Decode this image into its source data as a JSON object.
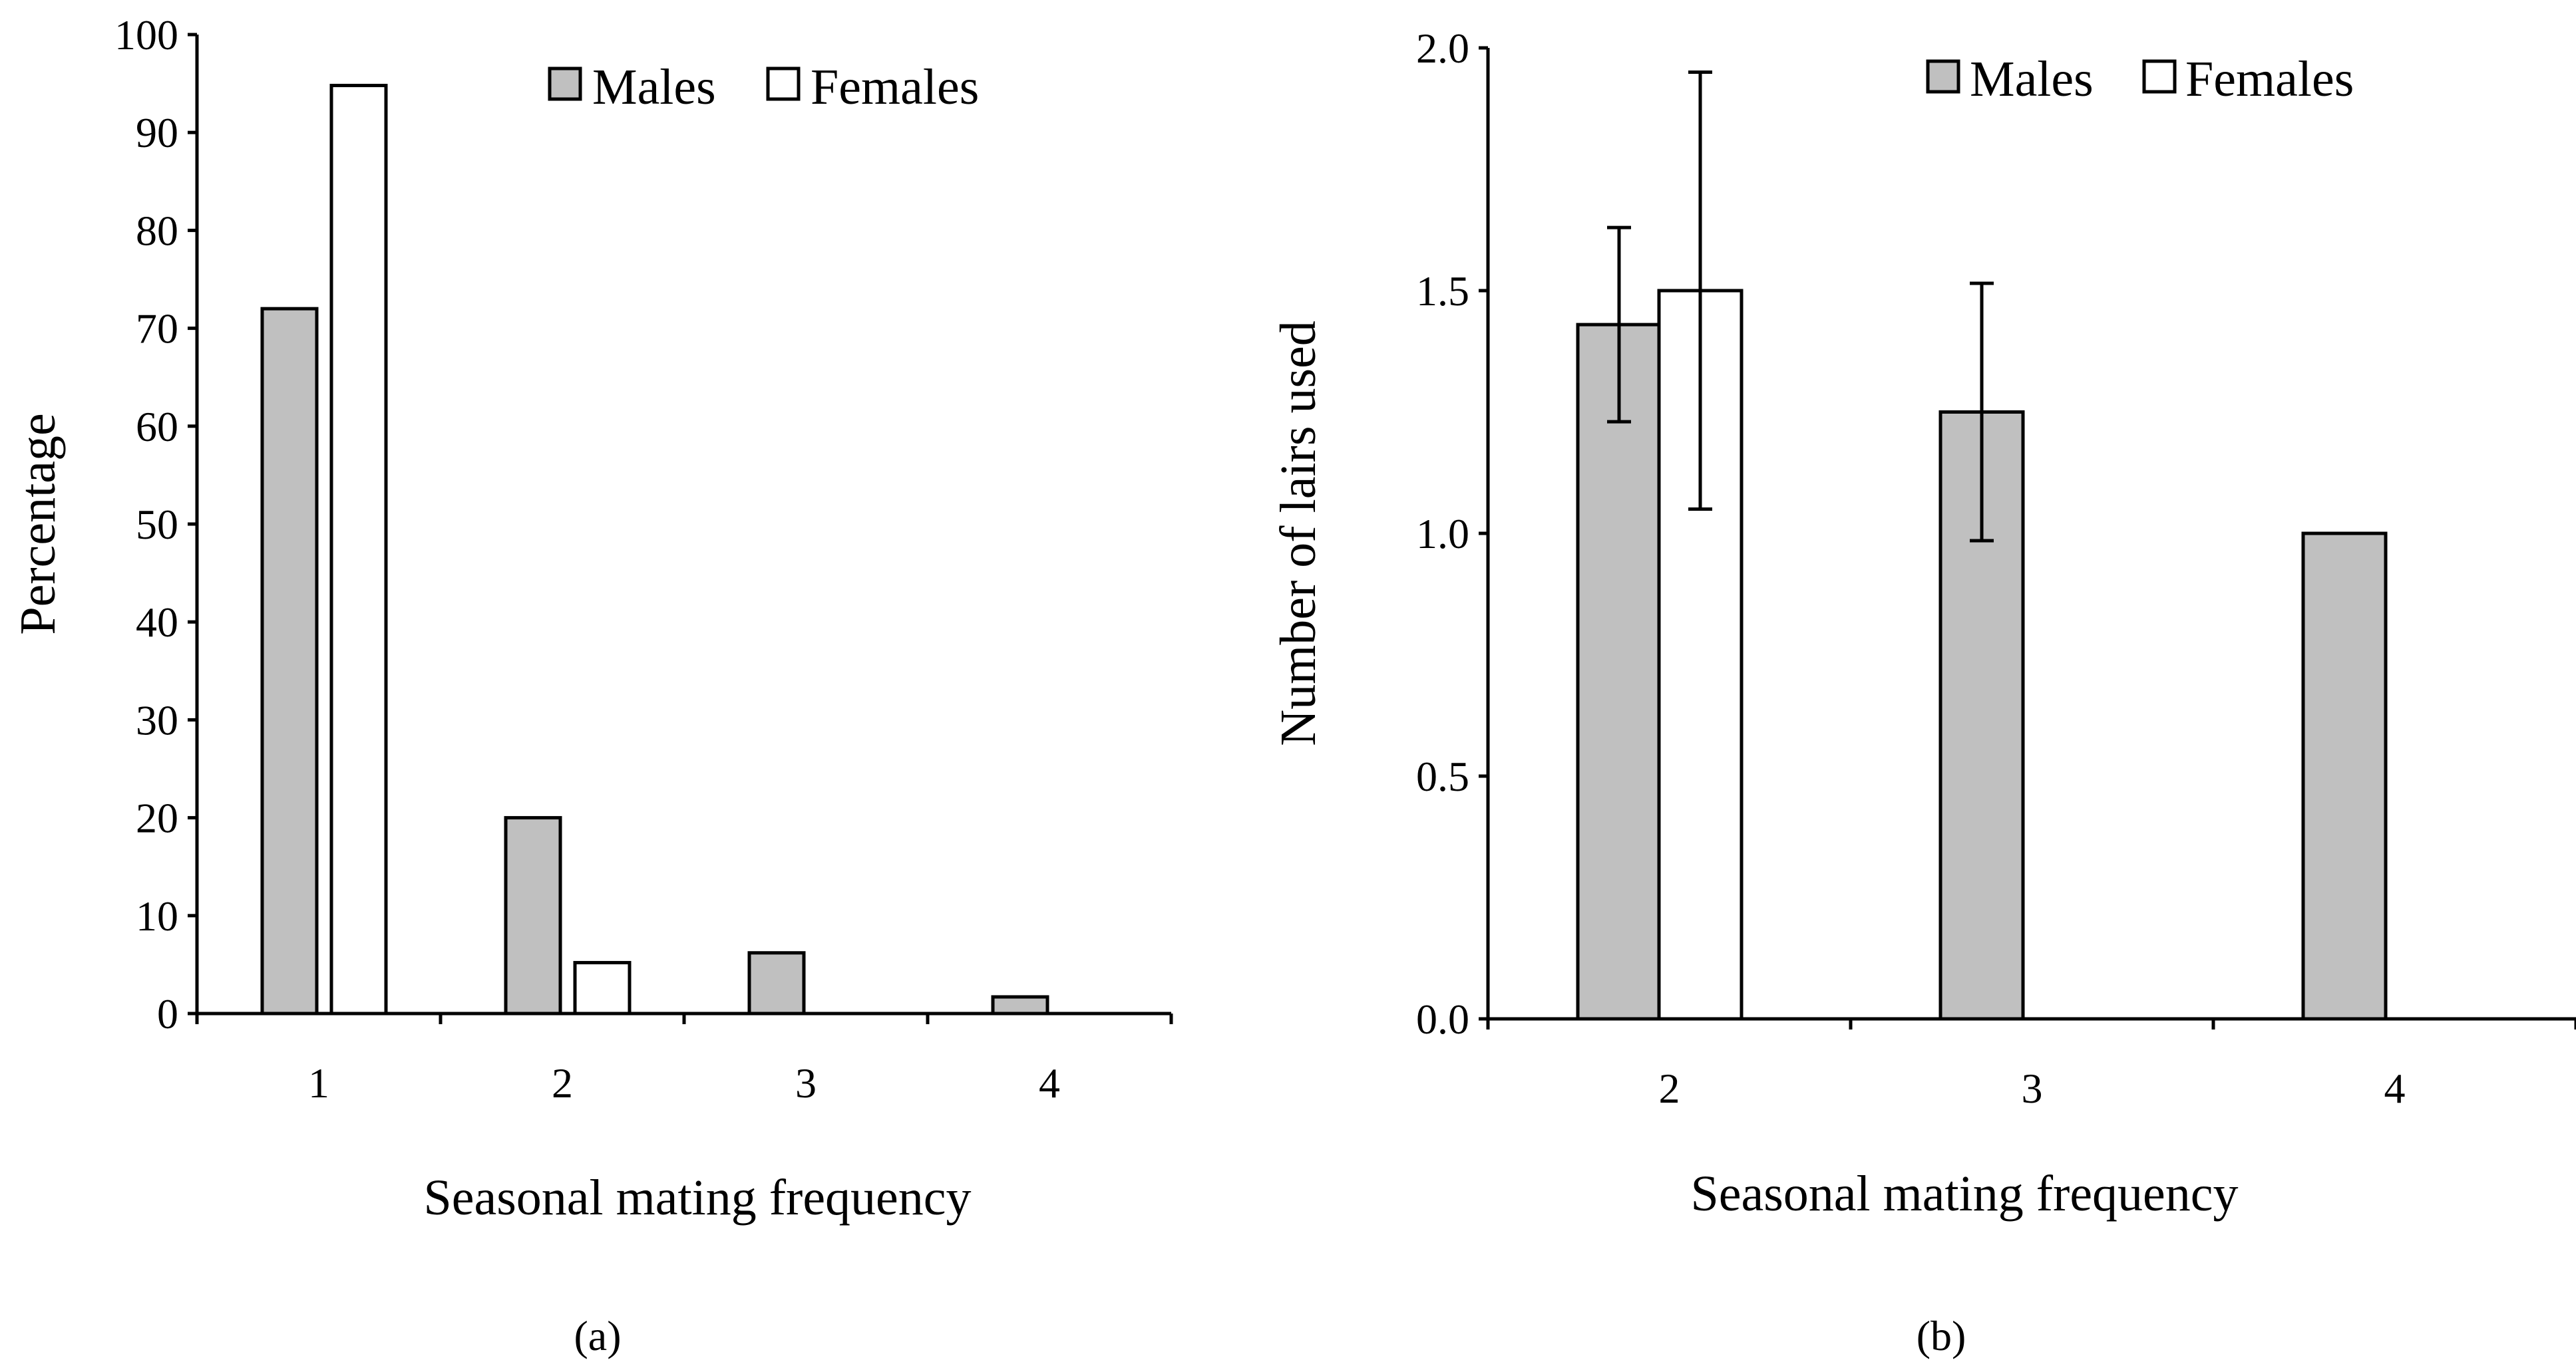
{
  "colors": {
    "males": "#c0c0c0",
    "females": "#ffffff"
  },
  "chart_data": [
    {
      "id": "a",
      "type": "bar",
      "title": "",
      "panel_label": "(a)",
      "xlabel": "Seasonal mating frequency",
      "ylabel": "Percentage",
      "categories": [
        "1",
        "2",
        "3",
        "4"
      ],
      "series": [
        {
          "name": "Males",
          "values": [
            72,
            20,
            6.2,
            1.7
          ]
        },
        {
          "name": "Females",
          "values": [
            94.8,
            5.2,
            null,
            null
          ]
        }
      ],
      "ylim": [
        0,
        100
      ],
      "yticks": [
        "0",
        "10",
        "20",
        "30",
        "40",
        "50",
        "60",
        "70",
        "80",
        "90",
        "100"
      ],
      "legend": [
        "Males",
        "Females"
      ],
      "legend_position": "top-right",
      "grid": false
    },
    {
      "id": "b",
      "type": "bar",
      "title": "",
      "panel_label": "(b)",
      "xlabel": "Seasonal mating frequency",
      "ylabel": "Number of lairs used",
      "categories": [
        "2",
        "3",
        "4"
      ],
      "series": [
        {
          "name": "Males",
          "values": [
            1.43,
            1.25,
            1.0
          ],
          "error": [
            0.2,
            0.265,
            null
          ]
        },
        {
          "name": "Females",
          "values": [
            1.5,
            null,
            null
          ],
          "error": [
            0.45,
            null,
            null
          ]
        }
      ],
      "ylim": [
        0,
        2.0
      ],
      "yticks": [
        "0.0",
        "0.5",
        "1.0",
        "1.5",
        "2.0"
      ],
      "legend": [
        "Males",
        "Females"
      ],
      "legend_position": "top-right",
      "grid": false
    }
  ]
}
